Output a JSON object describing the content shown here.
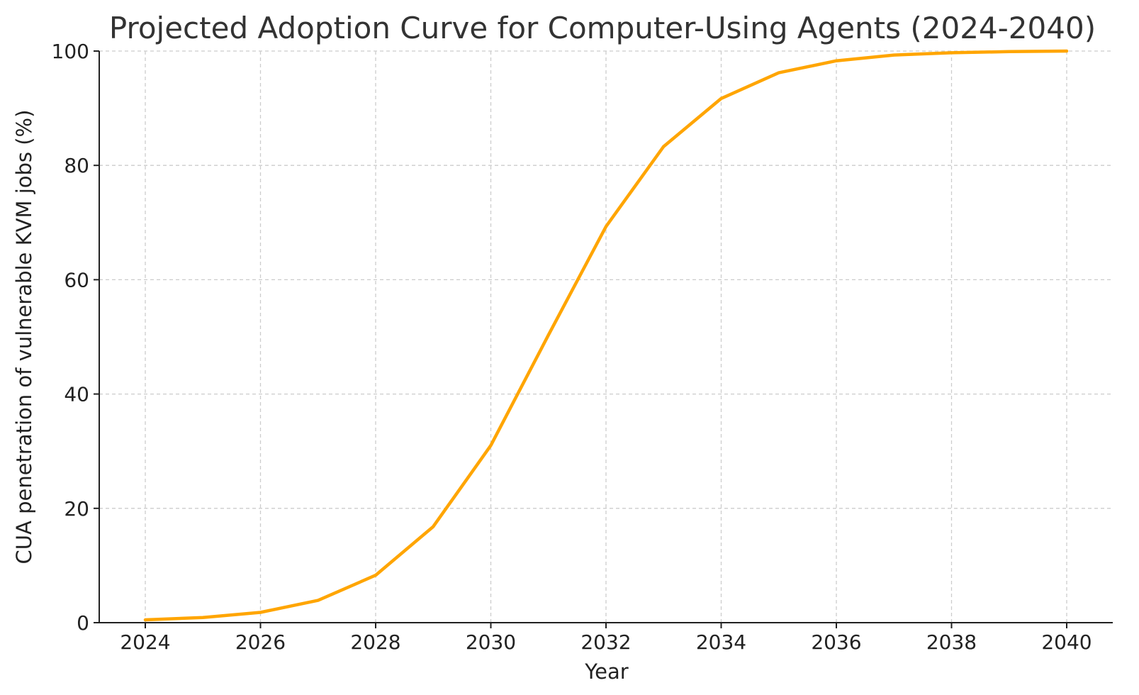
{
  "chart_data": {
    "type": "line",
    "title": "Projected Adoption Curve for Computer-Using Agents (2024-2040)",
    "xlabel": "Year",
    "ylabel": "CUA penetration of vulnerable KVM jobs (%)",
    "xlim": [
      2023.2,
      2040.8
    ],
    "ylim": [
      0,
      100
    ],
    "x_ticks": [
      2024,
      2026,
      2028,
      2030,
      2032,
      2034,
      2036,
      2038,
      2040
    ],
    "y_ticks": [
      0,
      20,
      40,
      60,
      80,
      100
    ],
    "grid": true,
    "legend": "none",
    "series": [
      {
        "color": "#FFA500",
        "x": [
          2024,
          2025,
          2026,
          2027,
          2028,
          2029,
          2030,
          2031,
          2032,
          2033,
          2034,
          2035,
          2036,
          2037,
          2038,
          2039,
          2040
        ],
        "y": [
          0.5,
          0.9,
          1.8,
          3.9,
          8.3,
          16.8,
          31.0,
          50.3,
          69.3,
          83.3,
          91.7,
          96.2,
          98.3,
          99.3,
          99.7,
          99.9,
          100.0
        ]
      }
    ]
  }
}
